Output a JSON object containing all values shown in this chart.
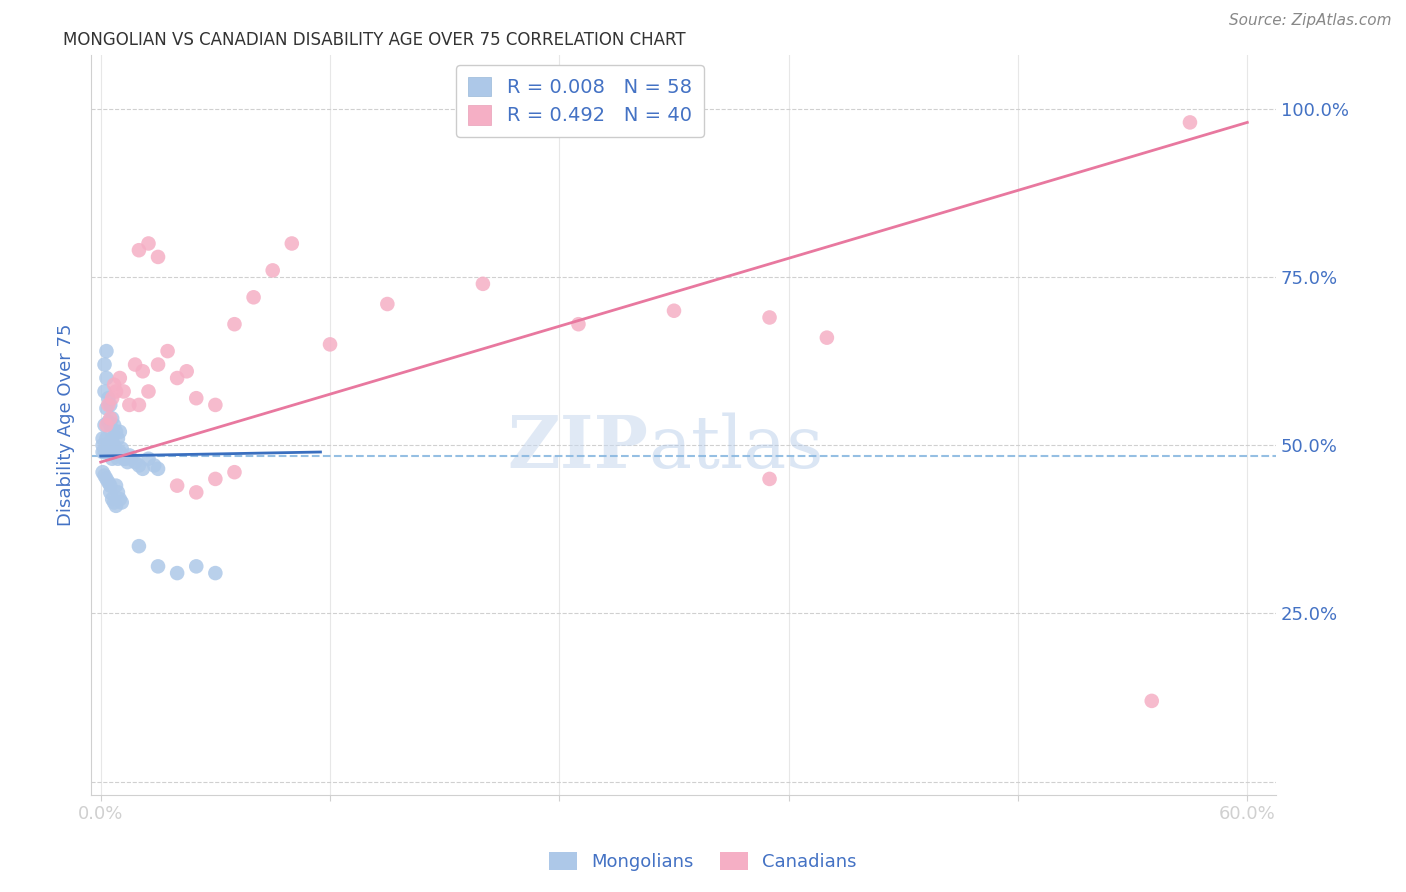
{
  "title": "MONGOLIAN VS CANADIAN DISABILITY AGE OVER 75 CORRELATION CHART",
  "source_text": "Source: ZipAtlas.com",
  "ylabel": "Disability Age Over 75",
  "watermark_zip": "ZIP",
  "watermark_atlas": "atlas",
  "R_mongolian": 0.008,
  "N_mongolian": 58,
  "R_canadian": 0.492,
  "N_canadian": 40,
  "xlim": [
    -0.005,
    0.615
  ],
  "ylim": [
    -0.02,
    1.08
  ],
  "yticks": [
    0.0,
    0.25,
    0.5,
    0.75,
    1.0
  ],
  "ytick_labels_right": [
    "",
    "25.0%",
    "50.0%",
    "75.0%",
    "100.0%"
  ],
  "xtick_vals": [
    0.0,
    0.12,
    0.24,
    0.36,
    0.48,
    0.6
  ],
  "xtick_labels": [
    "0.0%",
    "",
    "",
    "",
    "",
    "60.0%"
  ],
  "color_mongolian": "#adc8e8",
  "color_canadian": "#f5afc5",
  "line_color_mongolian": "#3a6fbf",
  "line_color_canadian": "#e8789f",
  "dashed_line_color": "#8ab8e0",
  "background_color": "#ffffff",
  "axis_label_color": "#4472c4",
  "grid_color": "#d0d0d0",
  "mongolian_x": [
    0.001,
    0.001,
    0.001,
    0.002,
    0.002,
    0.002,
    0.002,
    0.003,
    0.003,
    0.003,
    0.003,
    0.004,
    0.004,
    0.004,
    0.005,
    0.005,
    0.005,
    0.006,
    0.006,
    0.006,
    0.007,
    0.007,
    0.008,
    0.008,
    0.009,
    0.009,
    0.01,
    0.01,
    0.011,
    0.012,
    0.013,
    0.014,
    0.015,
    0.016,
    0.018,
    0.02,
    0.022,
    0.025,
    0.028,
    0.03,
    0.001,
    0.002,
    0.003,
    0.004,
    0.005,
    0.005,
    0.006,
    0.007,
    0.008,
    0.008,
    0.009,
    0.01,
    0.011,
    0.02,
    0.03,
    0.04,
    0.05,
    0.06
  ],
  "mongolian_y": [
    0.5,
    0.49,
    0.51,
    0.62,
    0.58,
    0.53,
    0.49,
    0.64,
    0.6,
    0.555,
    0.51,
    0.57,
    0.535,
    0.5,
    0.56,
    0.53,
    0.49,
    0.54,
    0.51,
    0.48,
    0.53,
    0.5,
    0.52,
    0.49,
    0.51,
    0.48,
    0.52,
    0.49,
    0.495,
    0.48,
    0.48,
    0.475,
    0.485,
    0.48,
    0.475,
    0.47,
    0.465,
    0.48,
    0.47,
    0.465,
    0.46,
    0.455,
    0.45,
    0.445,
    0.44,
    0.43,
    0.42,
    0.415,
    0.41,
    0.44,
    0.43,
    0.42,
    0.415,
    0.35,
    0.32,
    0.31,
    0.32,
    0.31
  ],
  "canadian_x": [
    0.003,
    0.004,
    0.005,
    0.006,
    0.007,
    0.008,
    0.01,
    0.012,
    0.015,
    0.018,
    0.02,
    0.022,
    0.025,
    0.03,
    0.035,
    0.04,
    0.045,
    0.05,
    0.06,
    0.07,
    0.08,
    0.09,
    0.1,
    0.12,
    0.15,
    0.2,
    0.25,
    0.3,
    0.35,
    0.38,
    0.02,
    0.025,
    0.03,
    0.04,
    0.05,
    0.06,
    0.07,
    0.35,
    0.55,
    0.57
  ],
  "canadian_y": [
    0.53,
    0.56,
    0.54,
    0.57,
    0.59,
    0.58,
    0.6,
    0.58,
    0.56,
    0.62,
    0.56,
    0.61,
    0.58,
    0.62,
    0.64,
    0.6,
    0.61,
    0.57,
    0.56,
    0.68,
    0.72,
    0.76,
    0.8,
    0.65,
    0.71,
    0.74,
    0.68,
    0.7,
    0.69,
    0.66,
    0.79,
    0.8,
    0.78,
    0.44,
    0.43,
    0.45,
    0.46,
    0.45,
    0.12,
    0.98
  ],
  "mon_line_x": [
    0.0,
    0.115
  ],
  "mon_line_y": [
    0.484,
    0.49
  ],
  "can_line_x": [
    0.0,
    0.6
  ],
  "can_line_y": [
    0.475,
    0.98
  ]
}
